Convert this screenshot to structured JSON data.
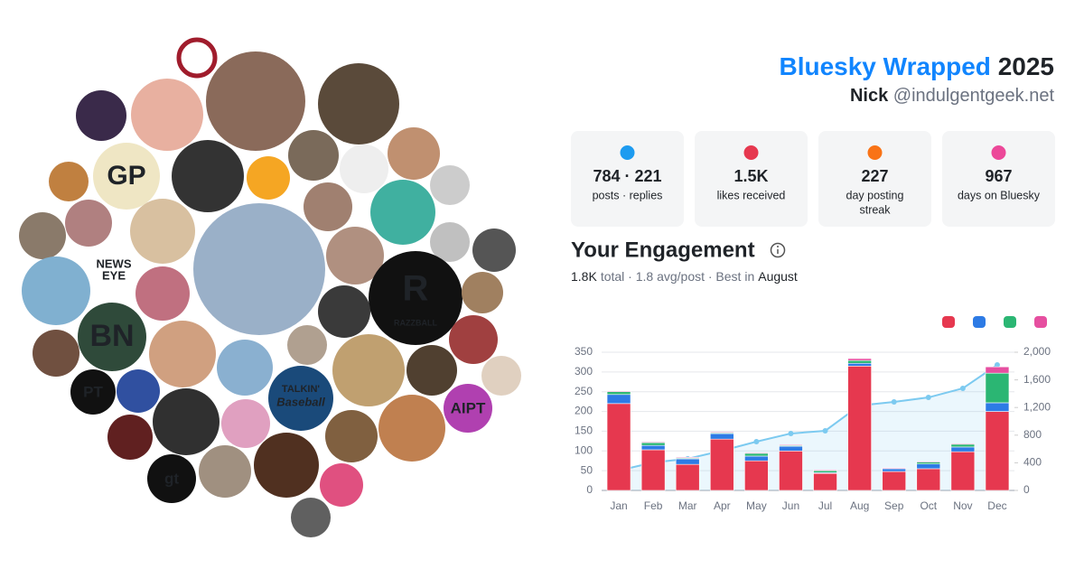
{
  "header": {
    "title": "Bluesky Wrapped",
    "year": "2025",
    "name": "Nick",
    "handle": "@indulgentgeek.net"
  },
  "stats": [
    {
      "value": "784 · 221",
      "label": "posts · replies"
    },
    {
      "value": "1.5K",
      "label": "likes received"
    },
    {
      "value": "227",
      "label": "day posting",
      "label2": "streak"
    },
    {
      "value": "967",
      "label": "days on Bluesky"
    }
  ],
  "avatars": [
    "GP",
    "NEWS",
    "EYE",
    "BN",
    "PT",
    "AIPT",
    "gt",
    "R",
    "RAZZBALL",
    "TALKIN'",
    "Baseball"
  ],
  "engagement": {
    "title": "Your Engagement",
    "total": "1.8K",
    "summary": "total · 1.8 avg/post · Best in",
    "best": "August"
  },
  "chart_data": {
    "type": "bar",
    "stacked": true,
    "grid": true,
    "categories": [
      "Jan",
      "Feb",
      "Mar",
      "Apr",
      "May",
      "Jun",
      "Jul",
      "Aug",
      "Sep",
      "Oct",
      "Nov",
      "Dec"
    ],
    "series": [
      {
        "color": "#e6384f",
        "values": [
          220,
          103,
          66,
          130,
          75,
          100,
          43,
          315,
          48,
          55,
          98,
          200
        ]
      },
      {
        "color": "#2d7be5",
        "values": [
          23,
          11,
          14,
          14,
          12,
          12,
          2,
          7,
          7,
          12,
          12,
          22
        ]
      },
      {
        "color": "#2bb673",
        "values": [
          7,
          7,
          2,
          2,
          7,
          2,
          5,
          7,
          0,
          5,
          7,
          75
        ]
      },
      {
        "color": "#e64fa0",
        "values": [
          2,
          2,
          2,
          2,
          2,
          2,
          2,
          5,
          2,
          2,
          2,
          16
        ]
      },
      {
        "type": "line",
        "axis": "y2",
        "color": "#7ccaf0",
        "values": [
          288,
          405,
          458,
          575,
          706,
          824,
          863,
          1229,
          1281,
          1346,
          1477,
          1817
        ]
      }
    ],
    "ylim": [
      0,
      350
    ],
    "yticks": [
      0,
      50,
      100,
      150,
      200,
      250,
      300,
      350
    ],
    "y2lim": [
      0,
      2000
    ],
    "y2ticks": [
      0,
      400,
      800,
      {
        "value": 1200,
        "label": "1,200"
      },
      {
        "value": 1600,
        "label": "1,600"
      },
      {
        "value": 2000,
        "label": "2,000"
      }
    ]
  }
}
